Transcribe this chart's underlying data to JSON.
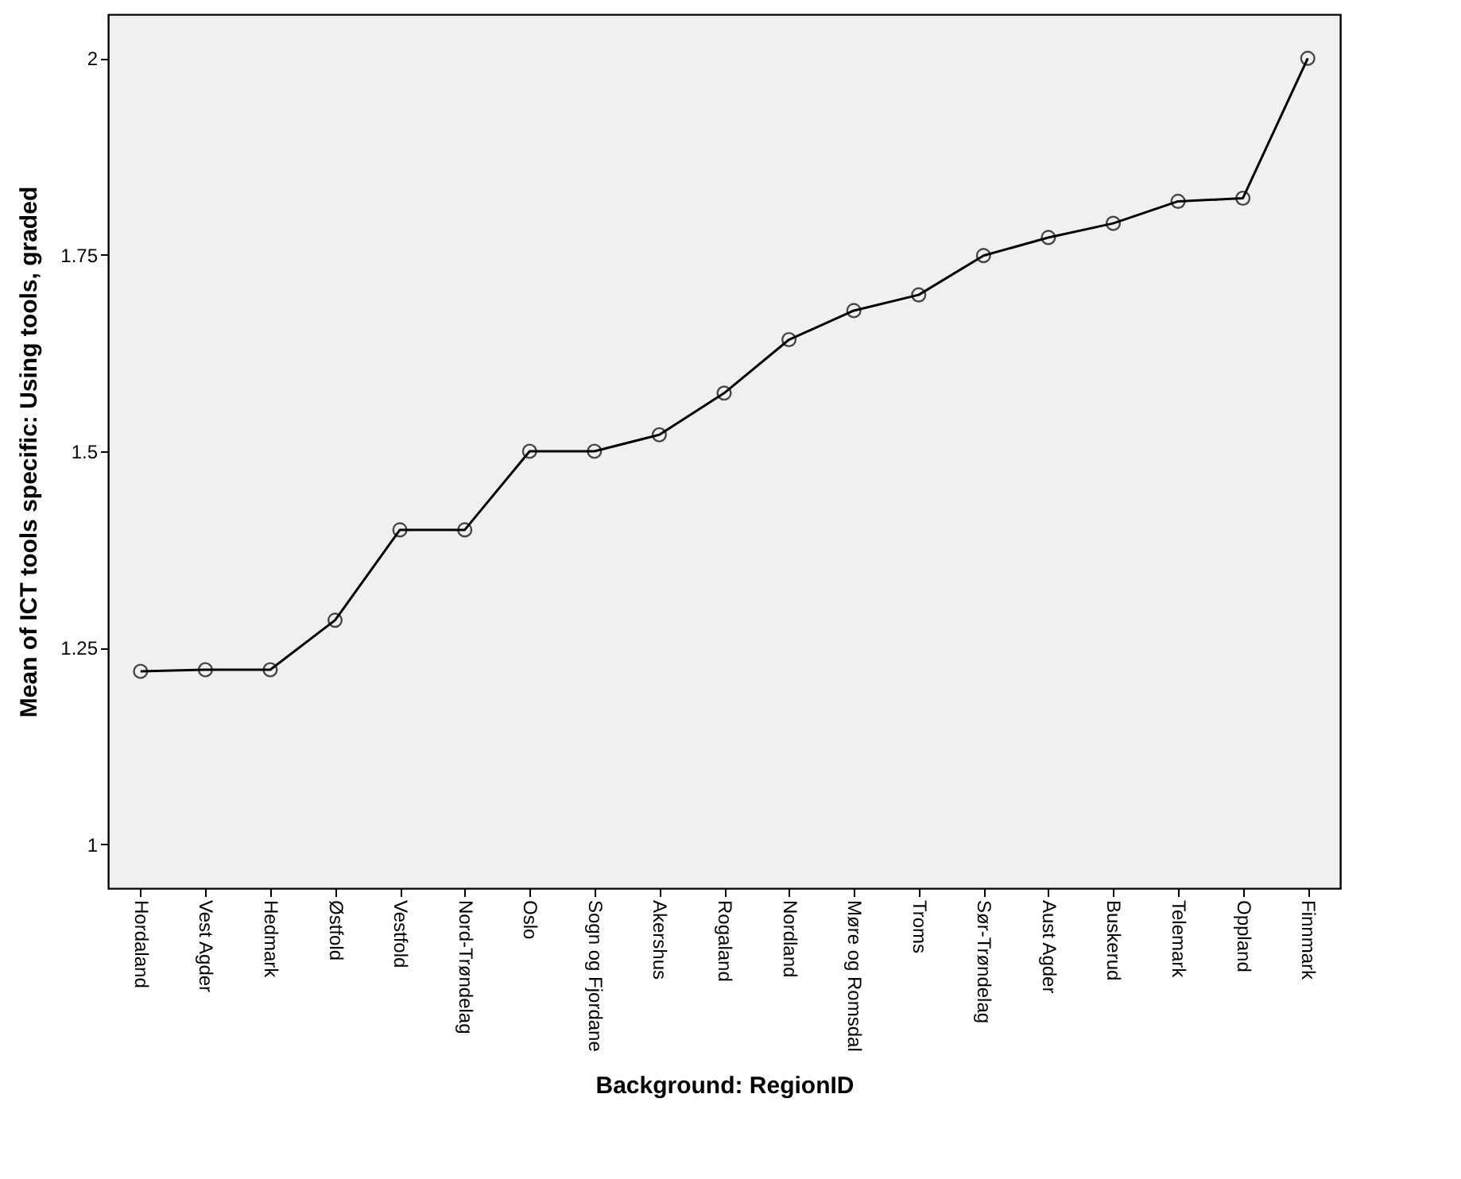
{
  "chart_data": {
    "type": "line",
    "xlabel": "Background: RegionID",
    "ylabel": "Mean of ICT tools specific: Using tools, graded",
    "categories": [
      "Hordaland",
      "Vest Agder",
      "Hedmark",
      "Østfold",
      "Vestfold",
      "Nord-Trøndelag",
      "Oslo",
      "Sogn og Fjordane",
      "Akershus",
      "Rogaland",
      "Nordland",
      "Møre og Romsdal",
      "Troms",
      "Sør-Trøndelag",
      "Aust Agder",
      "Buskerud",
      "Telemark",
      "Oppland",
      "Finnmark"
    ],
    "series": [
      {
        "color": "#000000",
        "values": [
          1.22,
          1.222,
          1.222,
          1.285,
          1.4,
          1.4,
          1.5,
          1.5,
          1.521,
          1.574,
          1.642,
          1.679,
          1.699,
          1.749,
          1.772,
          1.79,
          1.818,
          1.822,
          2.0
        ]
      }
    ],
    "ylim": [
      0.944,
      2.056
    ],
    "yticks": [
      1,
      1.25,
      1.5,
      1.75,
      2
    ],
    "grid": false,
    "legend": false,
    "marker": "circle",
    "line_style": "solid"
  }
}
